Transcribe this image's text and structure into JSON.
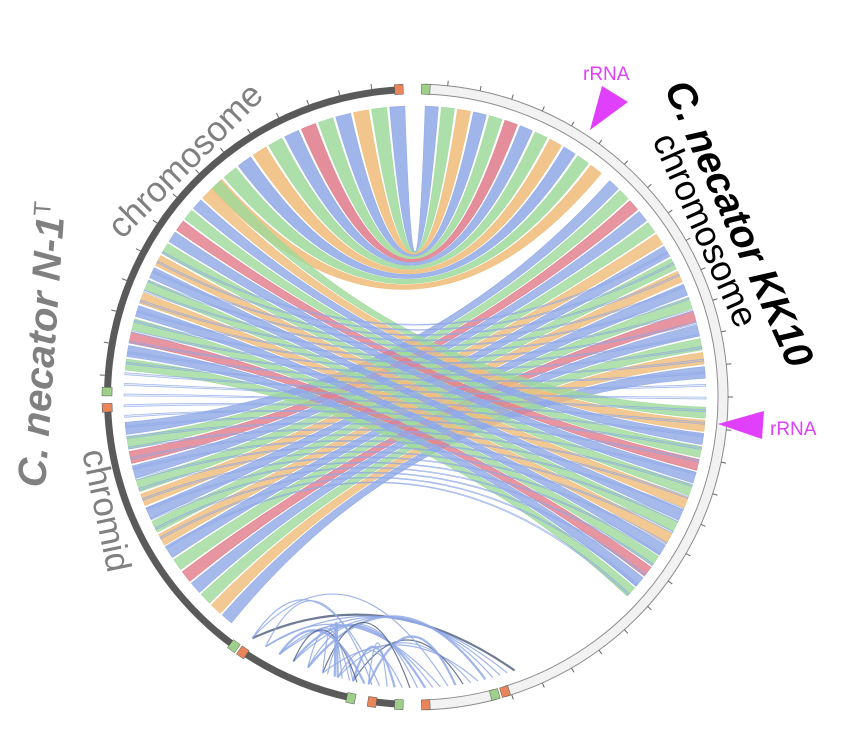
{
  "genomes": {
    "right": {
      "name": "C. necator KK10",
      "sublabel": "chromosome",
      "label_color": "#000000",
      "ring_fill": "#f2f2f2",
      "ring_stroke": "#8c8c8c"
    },
    "left": {
      "name": "C. necator N-1",
      "superscript": "T",
      "sublabel_top": "chromosome",
      "sublabel_bottom": "chromid",
      "label_color": "#808080",
      "ring_fill": "#5a5a5a"
    }
  },
  "annotations": [
    {
      "text": "rRNA",
      "color": "#e040fb",
      "id": "rrna-top"
    },
    {
      "text": "rRNA",
      "color": "#e040fb",
      "id": "rrna-right"
    }
  ],
  "colors": {
    "blue": "#8fa8e6",
    "green": "#9ed99a",
    "orange": "#f0bb78",
    "red": "#e07a8a",
    "end_marker_start": "#9fd08a",
    "end_marker_end": "#e8855a"
  }
}
